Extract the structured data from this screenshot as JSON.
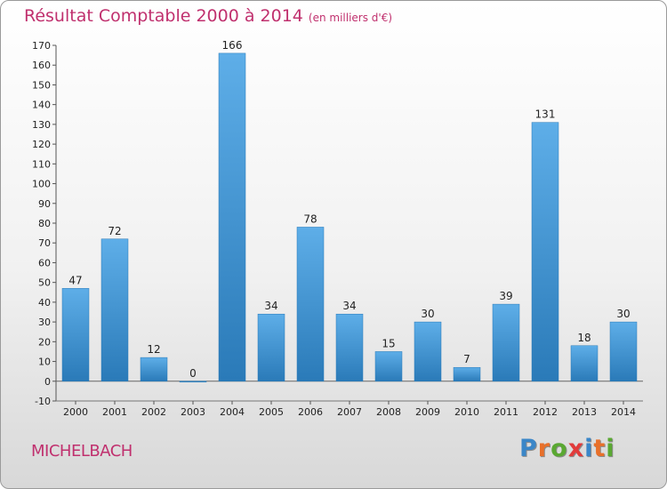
{
  "header": {
    "title": "Résultat Comptable 2000 à 2014",
    "subtitle": "(en milliers d'€)"
  },
  "footer": {
    "commune": "MICHELBACH",
    "logo": [
      "P",
      "r",
      "o",
      "x",
      "i",
      "t",
      "i"
    ],
    "logo_colors": [
      "#3a86c8",
      "#e8702a",
      "#5aa832",
      "#e23b3b",
      "#3a86c8",
      "#e8702a",
      "#5aa832"
    ]
  },
  "colors": {
    "bar_top": "#5eaee8",
    "bar_bottom": "#2a7ab8",
    "title": "#c0306e"
  },
  "chart_data": {
    "type": "bar",
    "categories": [
      "2000",
      "2001",
      "2002",
      "2003",
      "2004",
      "2005",
      "2006",
      "2007",
      "2008",
      "2009",
      "2010",
      "2011",
      "2012",
      "2013",
      "2014"
    ],
    "values": [
      47,
      72,
      12,
      0,
      166,
      34,
      78,
      34,
      15,
      30,
      7,
      39,
      131,
      18,
      30
    ],
    "title": "Résultat Comptable 2000 à 2014",
    "ylim": [
      -10,
      170
    ],
    "yticks": [
      -10,
      0,
      10,
      20,
      30,
      40,
      50,
      60,
      70,
      80,
      90,
      100,
      110,
      120,
      130,
      140,
      150,
      160,
      170
    ],
    "grid": false,
    "data_labels": true
  }
}
